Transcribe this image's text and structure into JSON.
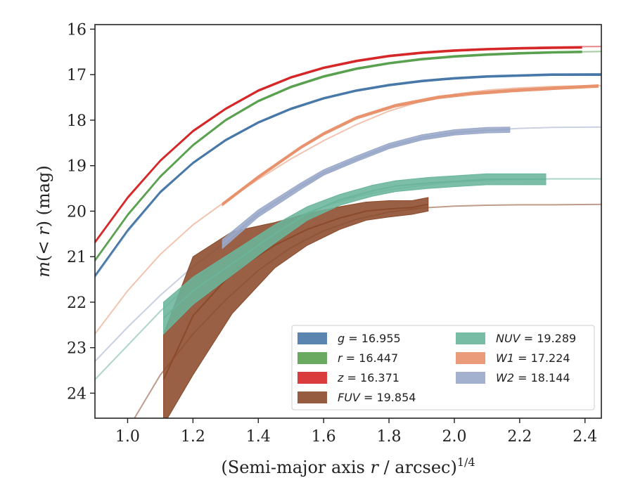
{
  "chart_data": {
    "type": "line",
    "xlabel_main": "(Semi-major axis ",
    "xlabel_var": "r",
    "xlabel_tail": " / arcsec)",
    "xlabel_exp": "1/4",
    "ylabel_main": "m",
    "ylabel_paren_open": "(< ",
    "ylabel_var": "r",
    "ylabel_paren_close": ") (mag)",
    "xlim": [
      0.9,
      2.45
    ],
    "ylim": [
      24.55,
      15.9
    ],
    "y_inverted": true,
    "grid": false,
    "legend_placement": "lower-right",
    "x_ticks": [
      {
        "value": 1.0,
        "label": "1.0"
      },
      {
        "value": 1.2,
        "label": "1.2"
      },
      {
        "value": 1.4,
        "label": "1.4"
      },
      {
        "value": 1.6,
        "label": "1.6"
      },
      {
        "value": 1.8,
        "label": "1.8"
      },
      {
        "value": 2.0,
        "label": "2.0"
      },
      {
        "value": 2.2,
        "label": "2.2"
      },
      {
        "value": 2.4,
        "label": "2.4"
      }
    ],
    "y_ticks": [
      {
        "value": 16,
        "label": "16"
      },
      {
        "value": 17,
        "label": "17"
      },
      {
        "value": 18,
        "label": "18"
      },
      {
        "value": 19,
        "label": "19"
      },
      {
        "value": 20,
        "label": "20"
      },
      {
        "value": 21,
        "label": "21"
      },
      {
        "value": 22,
        "label": "22"
      },
      {
        "value": 23,
        "label": "23"
      },
      {
        "value": 24,
        "label": "24"
      }
    ],
    "series": [
      {
        "band": "g",
        "value": "16.955",
        "color": "#4878a8",
        "model_x": [
          0.9,
          1.0,
          1.1,
          1.2,
          1.3,
          1.4,
          1.5,
          1.6,
          1.7,
          1.8,
          1.9,
          2.0,
          2.1,
          2.2,
          2.3,
          2.45
        ],
        "model_y": [
          21.45,
          20.45,
          19.6,
          18.95,
          18.45,
          18.05,
          17.75,
          17.52,
          17.35,
          17.23,
          17.14,
          17.08,
          17.04,
          17.01,
          16.99,
          16.98
        ],
        "data_x": [
          0.9,
          1.0,
          1.1,
          1.2,
          1.3,
          1.4,
          1.5,
          1.6,
          1.7,
          1.8,
          1.9,
          2.0,
          2.1,
          2.2,
          2.3,
          2.45
        ],
        "data_y": [
          21.42,
          20.42,
          19.58,
          18.94,
          18.44,
          18.05,
          17.75,
          17.52,
          17.35,
          17.23,
          17.14,
          17.08,
          17.04,
          17.02,
          17.0,
          17.0
        ],
        "data_err": [
          0.02,
          0.02,
          0.02,
          0.02,
          0.02,
          0.02,
          0.02,
          0.02,
          0.02,
          0.02,
          0.02,
          0.02,
          0.02,
          0.02,
          0.02,
          0.02
        ]
      },
      {
        "band": "r",
        "value": "16.447",
        "color": "#59a14f",
        "model_x": [
          0.9,
          1.0,
          1.1,
          1.2,
          1.3,
          1.4,
          1.5,
          1.6,
          1.7,
          1.8,
          1.9,
          2.0,
          2.1,
          2.2,
          2.3,
          2.45
        ],
        "model_y": [
          21.1,
          20.1,
          19.25,
          18.55,
          18.0,
          17.58,
          17.27,
          17.04,
          16.87,
          16.75,
          16.66,
          16.6,
          16.56,
          16.53,
          16.51,
          16.49
        ],
        "data_x": [
          0.9,
          1.0,
          1.1,
          1.2,
          1.3,
          1.4,
          1.5,
          1.6,
          1.7,
          1.8,
          1.9,
          2.0,
          2.1,
          2.2,
          2.3,
          2.39
        ],
        "data_y": [
          21.08,
          20.08,
          19.24,
          18.55,
          18.0,
          17.58,
          17.27,
          17.04,
          16.87,
          16.75,
          16.66,
          16.6,
          16.56,
          16.53,
          16.51,
          16.5
        ],
        "data_err": [
          0.02,
          0.02,
          0.02,
          0.02,
          0.02,
          0.02,
          0.02,
          0.02,
          0.02,
          0.02,
          0.02,
          0.02,
          0.02,
          0.02,
          0.02,
          0.02
        ]
      },
      {
        "band": "z",
        "value": "16.371",
        "color": "#d62728",
        "model_x": [
          0.9,
          1.0,
          1.1,
          1.2,
          1.3,
          1.4,
          1.5,
          1.6,
          1.7,
          1.8,
          1.9,
          2.0,
          2.1,
          2.2,
          2.3,
          2.45
        ],
        "model_y": [
          20.7,
          19.72,
          18.9,
          18.25,
          17.75,
          17.35,
          17.05,
          16.84,
          16.69,
          16.58,
          16.51,
          16.46,
          16.43,
          16.41,
          16.39,
          16.38
        ],
        "data_x": [
          0.9,
          1.0,
          1.1,
          1.2,
          1.3,
          1.4,
          1.5,
          1.6,
          1.7,
          1.8,
          1.9,
          2.0,
          2.1,
          2.2,
          2.3,
          2.39
        ],
        "data_y": [
          20.68,
          19.7,
          18.89,
          18.24,
          17.75,
          17.35,
          17.06,
          16.85,
          16.7,
          16.59,
          16.52,
          16.47,
          16.44,
          16.42,
          16.41,
          16.4
        ],
        "data_err": [
          0.02,
          0.02,
          0.02,
          0.02,
          0.02,
          0.02,
          0.02,
          0.02,
          0.02,
          0.02,
          0.02,
          0.02,
          0.02,
          0.02,
          0.02,
          0.02
        ]
      },
      {
        "band": "FUV",
        "value": "19.854",
        "color": "#8b4a2b",
        "model_x": [
          0.9,
          1.0,
          1.1,
          1.2,
          1.3,
          1.4,
          1.5,
          1.6,
          1.7,
          1.8,
          1.9,
          2.0,
          2.1,
          2.2,
          2.3,
          2.45
        ],
        "model_y": [
          25.9,
          24.8,
          23.6,
          22.7,
          21.95,
          21.3,
          20.8,
          20.43,
          20.18,
          20.02,
          19.93,
          19.89,
          19.87,
          19.86,
          19.86,
          19.85
        ],
        "data_x": [
          1.11,
          1.2,
          1.32,
          1.45,
          1.55,
          1.65,
          1.73,
          1.8,
          1.87,
          1.92
        ],
        "data_y": [
          23.7,
          22.3,
          21.35,
          20.75,
          20.4,
          20.15,
          20.0,
          19.95,
          19.92,
          19.85
        ],
        "data_err": [
          1.0,
          1.3,
          0.9,
          0.5,
          0.35,
          0.25,
          0.2,
          0.18,
          0.15,
          0.15
        ]
      },
      {
        "band": "NUV",
        "value": "19.289",
        "color": "#6ab59b",
        "model_x": [
          0.9,
          1.0,
          1.1,
          1.2,
          1.3,
          1.4,
          1.5,
          1.6,
          1.7,
          1.8,
          1.9,
          2.0,
          2.1,
          2.2,
          2.3,
          2.45
        ],
        "model_y": [
          23.7,
          22.95,
          22.2,
          21.55,
          21.0,
          20.55,
          20.18,
          19.9,
          19.68,
          19.53,
          19.43,
          19.36,
          19.32,
          19.3,
          19.29,
          19.29
        ],
        "data_x": [
          1.11,
          1.2,
          1.32,
          1.45,
          1.55,
          1.65,
          1.75,
          1.82,
          1.92,
          2.03,
          2.1,
          2.18,
          2.28
        ],
        "data_y": [
          22.35,
          21.75,
          21.15,
          20.5,
          20.05,
          19.75,
          19.55,
          19.45,
          19.38,
          19.33,
          19.3,
          19.3,
          19.3
        ],
        "data_err": [
          0.35,
          0.3,
          0.25,
          0.2,
          0.15,
          0.12,
          0.12,
          0.12,
          0.12,
          0.12,
          0.12,
          0.12,
          0.12
        ]
      },
      {
        "band": "W1",
        "value": "17.224",
        "color": "#e8916b",
        "model_x": [
          0.9,
          1.0,
          1.1,
          1.2,
          1.3,
          1.4,
          1.5,
          1.6,
          1.7,
          1.8,
          1.9,
          2.0,
          2.1,
          2.2,
          2.3,
          2.45
        ],
        "model_y": [
          22.7,
          21.75,
          20.95,
          20.3,
          19.78,
          19.3,
          18.85,
          18.45,
          18.1,
          17.8,
          17.58,
          17.43,
          17.34,
          17.29,
          17.26,
          17.24
        ],
        "data_x": [
          1.29,
          1.4,
          1.53,
          1.6,
          1.7,
          1.82,
          1.95,
          2.05,
          2.18,
          2.3,
          2.44
        ],
        "data_y": [
          19.85,
          19.25,
          18.6,
          18.3,
          17.95,
          17.68,
          17.5,
          17.42,
          17.35,
          17.3,
          17.25
        ],
        "data_err": [
          0.03,
          0.03,
          0.03,
          0.03,
          0.03,
          0.03,
          0.03,
          0.03,
          0.03,
          0.03,
          0.03
        ]
      },
      {
        "band": "W2",
        "value": "18.144",
        "color": "#9aa9c9",
        "model_x": [
          0.9,
          1.0,
          1.1,
          1.2,
          1.3,
          1.4,
          1.5,
          1.6,
          1.7,
          1.8,
          1.9,
          2.0,
          2.1,
          2.2,
          2.3,
          2.45
        ],
        "model_y": [
          23.3,
          22.55,
          21.85,
          21.22,
          20.68,
          20.08,
          19.58,
          19.2,
          18.87,
          18.6,
          18.42,
          18.3,
          18.22,
          18.18,
          18.16,
          18.15
        ],
        "data_x": [
          1.29,
          1.4,
          1.53,
          1.6,
          1.7,
          1.8,
          1.9,
          2.0,
          2.1,
          2.17
        ],
        "data_y": [
          20.72,
          20.05,
          19.45,
          19.15,
          18.85,
          18.57,
          18.38,
          18.27,
          18.22,
          18.21
        ],
        "data_err": [
          0.1,
          0.08,
          0.07,
          0.06,
          0.06,
          0.06,
          0.06,
          0.06,
          0.06,
          0.06
        ]
      }
    ],
    "legend": {
      "columns": [
        [
          "g",
          "r",
          "z",
          "FUV"
        ],
        [
          "NUV",
          "W1",
          "W2"
        ]
      ]
    }
  }
}
